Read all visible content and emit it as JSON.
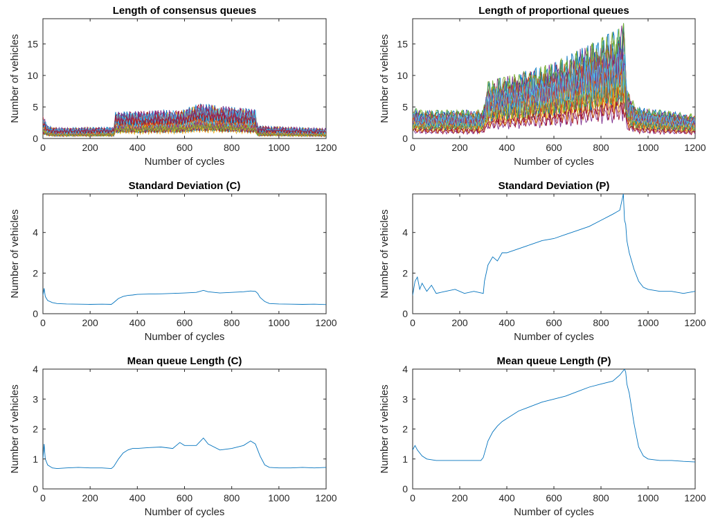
{
  "chart_data": [
    {
      "id": "consensus-queues",
      "type": "line",
      "title": "Length of consensus queues",
      "xlabel": "Number of cycles",
      "ylabel": "Number of vehicles",
      "xlim": [
        0,
        1200
      ],
      "ylim": [
        0,
        19
      ],
      "xticks": [
        0,
        200,
        400,
        600,
        800,
        1000,
        1200
      ],
      "yticks": [
        0,
        5,
        10,
        15
      ],
      "grid": false,
      "legend": "none",
      "colors": [
        "#0072BD",
        "#D95319",
        "#EDB120",
        "#7E2F8E",
        "#77AC30",
        "#4DBEEE",
        "#A2142F"
      ],
      "series_profile": [
        [
          0,
          3.8
        ],
        [
          20,
          2.0
        ],
        [
          60,
          1.7
        ],
        [
          300,
          1.8
        ],
        [
          305,
          4.2
        ],
        [
          600,
          4.6
        ],
        [
          650,
          5.6
        ],
        [
          900,
          4.6
        ],
        [
          910,
          2.0
        ],
        [
          1200,
          1.6
        ]
      ],
      "series_count": 28,
      "series_period": 12
    },
    {
      "id": "proportional-queues",
      "type": "line",
      "title": "Length of proportional queues",
      "xlabel": "Number of cycles",
      "ylabel": "Number of vehicles",
      "xlim": [
        0,
        1200
      ],
      "ylim": [
        0,
        19
      ],
      "xticks": [
        0,
        200,
        400,
        600,
        800,
        1000,
        1200
      ],
      "yticks": [
        0,
        5,
        10,
        15
      ],
      "grid": false,
      "legend": "none",
      "colors": [
        "#0072BD",
        "#D95319",
        "#EDB120",
        "#7E2F8E",
        "#77AC30",
        "#4DBEEE",
        "#A2142F"
      ],
      "series_profile": [
        [
          0,
          5.0
        ],
        [
          30,
          4.5
        ],
        [
          300,
          4.5
        ],
        [
          320,
          9.0
        ],
        [
          600,
          12.0
        ],
        [
          880,
          17.5
        ],
        [
          900,
          18.5
        ],
        [
          910,
          8.0
        ],
        [
          950,
          5.0
        ],
        [
          1200,
          3.8
        ]
      ],
      "series_count": 28,
      "series_period": 22
    },
    {
      "id": "std-dev-c",
      "type": "line",
      "title": "Standard Deviation (C)",
      "xlabel": "Number of cycles",
      "ylabel": "Number of vehicles",
      "xlim": [
        0,
        1200
      ],
      "ylim": [
        0,
        5.9
      ],
      "xticks": [
        0,
        200,
        400,
        600,
        800,
        1000,
        1200
      ],
      "yticks": [
        0,
        2,
        4
      ],
      "grid": false,
      "legend": "none",
      "color": "#0072BD",
      "x": [
        0,
        5,
        10,
        20,
        40,
        60,
        100,
        150,
        200,
        250,
        290,
        300,
        320,
        340,
        360,
        380,
        400,
        450,
        500,
        550,
        600,
        650,
        680,
        700,
        750,
        800,
        850,
        880,
        900,
        910,
        920,
        940,
        960,
        1000,
        1050,
        1100,
        1150,
        1200
      ],
      "values": [
        0.9,
        1.25,
        0.85,
        0.65,
        0.55,
        0.5,
        0.48,
        0.47,
        0.46,
        0.47,
        0.46,
        0.55,
        0.75,
        0.85,
        0.9,
        0.92,
        0.95,
        0.97,
        0.98,
        1.0,
        1.02,
        1.05,
        1.15,
        1.08,
        1.02,
        1.05,
        1.08,
        1.12,
        1.1,
        1.0,
        0.8,
        0.6,
        0.5,
        0.48,
        0.47,
        0.46,
        0.47,
        0.45
      ]
    },
    {
      "id": "std-dev-p",
      "type": "line",
      "title": "Standard Deviation (P)",
      "xlabel": "Number of cycles",
      "ylabel": "Number of vehicles",
      "xlim": [
        0,
        1200
      ],
      "ylim": [
        0,
        5.9
      ],
      "xticks": [
        0,
        200,
        400,
        600,
        800,
        1000,
        1200
      ],
      "yticks": [
        0,
        2,
        4
      ],
      "grid": false,
      "legend": "none",
      "color": "#0072BD",
      "x": [
        0,
        10,
        20,
        30,
        40,
        60,
        80,
        100,
        140,
        180,
        220,
        260,
        300,
        305,
        320,
        340,
        360,
        380,
        400,
        450,
        500,
        550,
        600,
        650,
        700,
        750,
        800,
        850,
        880,
        895,
        900,
        905,
        910,
        920,
        940,
        960,
        980,
        1000,
        1050,
        1100,
        1150,
        1200
      ],
      "values": [
        0.9,
        1.6,
        1.8,
        1.2,
        1.5,
        1.1,
        1.4,
        1.0,
        1.1,
        1.2,
        1.0,
        1.1,
        1.0,
        1.6,
        2.4,
        2.8,
        2.6,
        3.0,
        3.0,
        3.2,
        3.4,
        3.6,
        3.7,
        3.9,
        4.1,
        4.3,
        4.6,
        4.9,
        5.1,
        5.9,
        4.6,
        4.4,
        3.6,
        3.0,
        2.2,
        1.6,
        1.3,
        1.2,
        1.1,
        1.1,
        1.0,
        1.1
      ]
    },
    {
      "id": "mean-queue-c",
      "type": "line",
      "title": "Mean queue Length (C)",
      "xlabel": "Number of cycles",
      "ylabel": "Number of vehicles",
      "xlim": [
        0,
        1200
      ],
      "ylim": [
        0,
        4
      ],
      "xticks": [
        0,
        200,
        400,
        600,
        800,
        1000,
        1200
      ],
      "yticks": [
        0,
        1,
        2,
        3,
        4
      ],
      "grid": false,
      "legend": "none",
      "color": "#0072BD",
      "x": [
        0,
        5,
        10,
        20,
        40,
        60,
        100,
        150,
        200,
        250,
        290,
        300,
        320,
        340,
        360,
        380,
        400,
        450,
        500,
        550,
        580,
        600,
        650,
        680,
        700,
        750,
        800,
        850,
        880,
        900,
        920,
        940,
        960,
        1000,
        1050,
        1100,
        1150,
        1200
      ],
      "values": [
        1.0,
        1.5,
        1.0,
        0.8,
        0.7,
        0.68,
        0.7,
        0.72,
        0.7,
        0.7,
        0.68,
        0.75,
        1.0,
        1.2,
        1.3,
        1.35,
        1.35,
        1.38,
        1.4,
        1.35,
        1.55,
        1.45,
        1.45,
        1.7,
        1.5,
        1.3,
        1.35,
        1.45,
        1.6,
        1.5,
        1.1,
        0.8,
        0.72,
        0.7,
        0.7,
        0.72,
        0.7,
        0.72
      ]
    },
    {
      "id": "mean-queue-p",
      "type": "line",
      "title": "Mean queue Length (P)",
      "xlabel": "Number of cycles",
      "ylabel": "Number of vehicles",
      "xlim": [
        0,
        1200
      ],
      "ylim": [
        0,
        4
      ],
      "xticks": [
        0,
        200,
        400,
        600,
        800,
        1000,
        1200
      ],
      "yticks": [
        0,
        1,
        2,
        3,
        4
      ],
      "grid": false,
      "legend": "none",
      "color": "#0072BD",
      "x": [
        0,
        10,
        20,
        40,
        60,
        100,
        150,
        200,
        250,
        290,
        300,
        320,
        340,
        360,
        380,
        400,
        450,
        500,
        550,
        600,
        650,
        700,
        750,
        800,
        850,
        880,
        900,
        905,
        910,
        920,
        940,
        960,
        980,
        1000,
        1050,
        1100,
        1150,
        1200
      ],
      "values": [
        1.3,
        1.45,
        1.3,
        1.1,
        1.0,
        0.95,
        0.95,
        0.95,
        0.95,
        0.95,
        1.05,
        1.6,
        1.9,
        2.1,
        2.25,
        2.35,
        2.6,
        2.75,
        2.9,
        3.0,
        3.1,
        3.25,
        3.4,
        3.5,
        3.6,
        3.8,
        4.0,
        3.9,
        3.5,
        3.2,
        2.2,
        1.4,
        1.1,
        1.0,
        0.95,
        0.95,
        0.92,
        0.9
      ]
    }
  ]
}
